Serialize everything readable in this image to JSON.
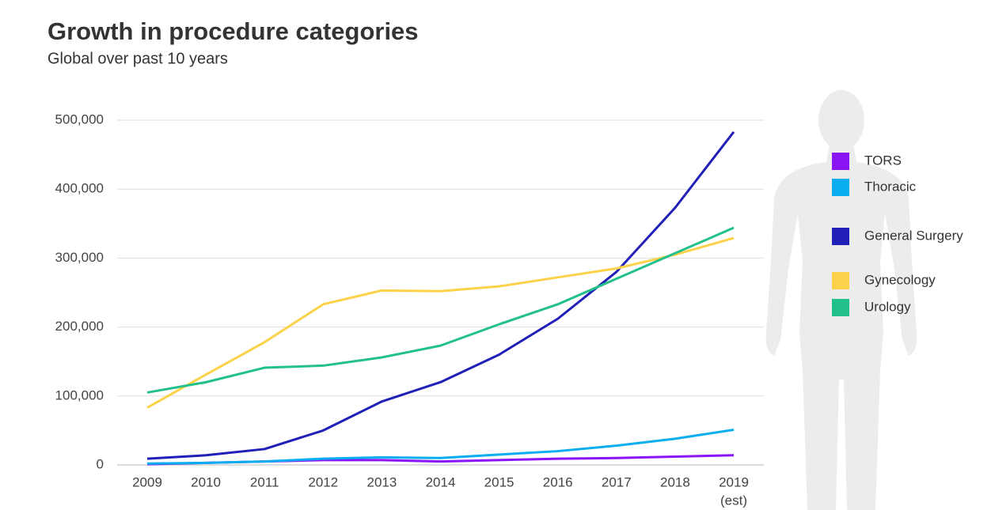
{
  "chart_data": {
    "type": "line",
    "title": "Growth in procedure categories",
    "subtitle": "Global over past 10 years",
    "categories": [
      "2009",
      "2010",
      "2011",
      "2012",
      "2013",
      "2014",
      "2015",
      "2016",
      "2017",
      "2018",
      "2019"
    ],
    "annotations": [
      "(est)"
    ],
    "series": [
      {
        "name": "TORS",
        "color": "#8a14f5",
        "values": [
          1000,
          3000,
          5000,
          7000,
          7000,
          5000,
          7000,
          9000,
          10000,
          12000,
          14000
        ]
      },
      {
        "name": "Thoracic",
        "color": "#0aaef0",
        "values": [
          2000,
          3000,
          5000,
          9000,
          11000,
          10000,
          15000,
          20000,
          28000,
          38000,
          51000
        ]
      },
      {
        "name": "General Surgery",
        "color": "#2020b8",
        "values": [
          9000,
          14000,
          23000,
          50000,
          92000,
          120000,
          160000,
          212000,
          280000,
          373000,
          483000
        ]
      },
      {
        "name": "Gynecology",
        "color": "#fcd24a",
        "values": [
          83000,
          131000,
          178000,
          233000,
          253000,
          252000,
          259000,
          272000,
          285000,
          305000,
          329000
        ]
      },
      {
        "name": "Urology",
        "color": "#22c08a",
        "values": [
          105000,
          120000,
          141000,
          144000,
          156000,
          173000,
          204000,
          233000,
          270000,
          307000,
          344000
        ]
      }
    ],
    "ylim": [
      0,
      500000
    ],
    "yticks": [
      0,
      {
        "value": 100000,
        "label": "100,000"
      },
      {
        "value": 200000,
        "label": "200,000"
      },
      {
        "value": 300000,
        "label": "300,000"
      },
      {
        "value": 400000,
        "label": "400,000"
      },
      {
        "value": 500000,
        "label": "500,000"
      }
    ],
    "grid": true
  }
}
